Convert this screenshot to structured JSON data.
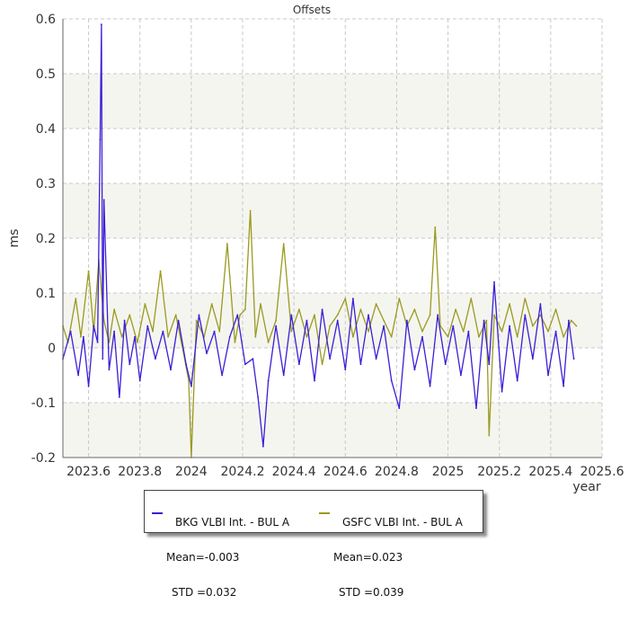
{
  "chart_data": {
    "type": "line",
    "title": "Offsets",
    "xlabel": "year",
    "ylabel": "ms",
    "xlim": [
      2023.5,
      2025.6
    ],
    "ylim": [
      -0.2,
      0.6
    ],
    "x_ticks": [
      2023.6,
      2023.8,
      2024,
      2024.2,
      2024.4,
      2024.6,
      2024.8,
      2025,
      2025.2,
      2025.4,
      2025.6
    ],
    "y_ticks": [
      -0.2,
      -0.1,
      0,
      0.1,
      0.2,
      0.3,
      0.4,
      0.5,
      0.6
    ],
    "grid": true,
    "legend_position": "bottom",
    "series": [
      {
        "name": "BKG VLBI Int. - BUL A",
        "mean_label": "Mean=-0.003",
        "std_label": "STD =0.032",
        "color": "#3a1fd6",
        "x": [
          2023.5,
          2023.53,
          2023.56,
          2023.58,
          2023.6,
          2023.62,
          2023.635,
          2023.645,
          2023.65,
          2023.655,
          2023.66,
          2023.68,
          2023.7,
          2023.72,
          2023.74,
          2023.76,
          2023.78,
          2023.8,
          2023.83,
          2023.86,
          2023.89,
          2023.92,
          2023.95,
          2023.98,
          2024.0,
          2024.03,
          2024.06,
          2024.09,
          2024.12,
          2024.15,
          2024.18,
          2024.21,
          2024.24,
          2024.26,
          2024.28,
          2024.3,
          2024.33,
          2024.36,
          2024.39,
          2024.42,
          2024.45,
          2024.48,
          2024.51,
          2024.54,
          2024.57,
          2024.6,
          2024.63,
          2024.66,
          2024.69,
          2024.72,
          2024.75,
          2024.78,
          2024.81,
          2024.84,
          2024.87,
          2024.9,
          2024.93,
          2024.96,
          2024.99,
          2025.02,
          2025.05,
          2025.08,
          2025.11,
          2025.14,
          2025.16,
          2025.18,
          2025.21,
          2025.24,
          2025.27,
          2025.3,
          2025.33,
          2025.36,
          2025.39,
          2025.42,
          2025.45,
          2025.47,
          2025.49
        ],
        "y": [
          -0.02,
          0.03,
          -0.05,
          0.02,
          -0.07,
          0.04,
          0.01,
          0.38,
          0.59,
          -0.02,
          0.27,
          -0.04,
          0.03,
          -0.09,
          0.05,
          -0.03,
          0.02,
          -0.06,
          0.04,
          -0.02,
          0.03,
          -0.04,
          0.05,
          -0.03,
          -0.07,
          0.06,
          -0.01,
          0.03,
          -0.05,
          0.02,
          0.06,
          -0.03,
          -0.02,
          -0.09,
          -0.18,
          -0.06,
          0.04,
          -0.05,
          0.06,
          -0.03,
          0.05,
          -0.06,
          0.07,
          -0.02,
          0.05,
          -0.04,
          0.09,
          -0.03,
          0.06,
          -0.02,
          0.04,
          -0.06,
          -0.11,
          0.05,
          -0.04,
          0.02,
          -0.07,
          0.06,
          -0.03,
          0.04,
          -0.05,
          0.03,
          -0.11,
          0.05,
          -0.03,
          0.12,
          -0.08,
          0.04,
          -0.06,
          0.06,
          -0.02,
          0.08,
          -0.05,
          0.03,
          -0.07,
          0.05,
          -0.02
        ]
      },
      {
        "name": "GSFC VLBI Int. - BUL A",
        "mean_label": "Mean=0.023",
        "std_label": "STD =0.039",
        "color": "#9a9a20",
        "x": [
          2023.5,
          2023.52,
          2023.55,
          2023.57,
          2023.6,
          2023.62,
          2023.64,
          2023.66,
          2023.68,
          2023.7,
          2023.73,
          2023.76,
          2023.79,
          2023.82,
          2023.85,
          2023.88,
          2023.91,
          2023.94,
          2023.97,
          2023.99,
          2024.0,
          2024.02,
          2024.05,
          2024.08,
          2024.11,
          2024.14,
          2024.17,
          2024.19,
          2024.21,
          2024.23,
          2024.25,
          2024.27,
          2024.3,
          2024.33,
          2024.36,
          2024.39,
          2024.42,
          2024.45,
          2024.48,
          2024.51,
          2024.54,
          2024.57,
          2024.6,
          2024.63,
          2024.66,
          2024.69,
          2024.72,
          2024.75,
          2024.78,
          2024.81,
          2024.84,
          2024.87,
          2024.9,
          2024.93,
          2024.95,
          2024.97,
          2025.0,
          2025.03,
          2025.06,
          2025.09,
          2025.12,
          2025.15,
          2025.16,
          2025.18,
          2025.21,
          2025.24,
          2025.27,
          2025.3,
          2025.33,
          2025.36,
          2025.39,
          2025.42,
          2025.45,
          2025.48,
          2025.5
        ],
        "y": [
          0.04,
          0.01,
          0.09,
          0.02,
          0.14,
          0.03,
          0.16,
          0.05,
          0.01,
          0.07,
          0.02,
          0.06,
          0.01,
          0.08,
          0.03,
          0.14,
          0.02,
          0.06,
          -0.01,
          -0.06,
          -0.2,
          0.05,
          0.02,
          0.08,
          0.03,
          0.19,
          0.01,
          0.06,
          0.07,
          0.25,
          0.02,
          0.08,
          0.01,
          0.05,
          0.19,
          0.03,
          0.07,
          0.02,
          0.06,
          -0.03,
          0.04,
          0.06,
          0.09,
          0.02,
          0.07,
          0.03,
          0.08,
          0.05,
          0.02,
          0.09,
          0.04,
          0.07,
          0.03,
          0.06,
          0.22,
          0.04,
          0.02,
          0.07,
          0.03,
          0.09,
          0.02,
          0.05,
          -0.16,
          0.06,
          0.03,
          0.08,
          0.02,
          0.09,
          0.04,
          0.06,
          0.03,
          0.07,
          0.02,
          0.05,
          0.04
        ]
      }
    ]
  }
}
